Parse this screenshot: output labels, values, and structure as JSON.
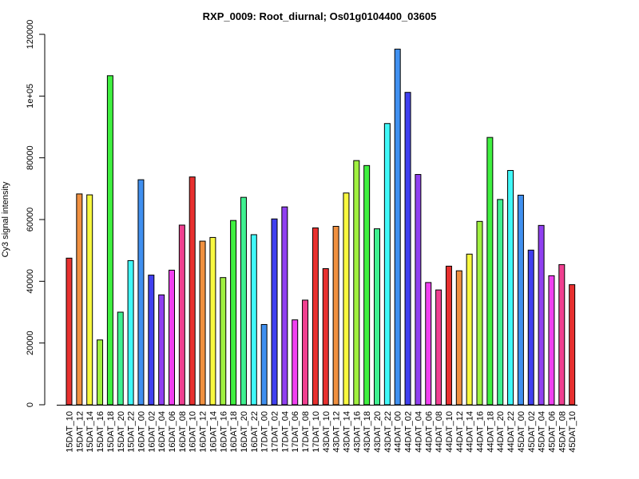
{
  "chart_data": {
    "type": "bar",
    "title": "RXP_0009: Root_diurnal; Os01g0104400_03605",
    "xlabel": "",
    "ylabel": "Cy3 signal intensity",
    "ylim": [
      0,
      120000
    ],
    "yticks": [
      0,
      20000,
      40000,
      60000,
      80000,
      "1e+05",
      120000
    ],
    "grid": false,
    "legend": "none",
    "categories": [
      "15DAT_10",
      "15DAT_12",
      "15DAT_14",
      "15DAT_16",
      "15DAT_18",
      "15DAT_20",
      "15DAT_22",
      "16DAT_00",
      "16DAT_02",
      "16DAT_04",
      "16DAT_06",
      "16DAT_08",
      "16DAT_10",
      "16DAT_12",
      "16DAT_14",
      "16DAT_16",
      "16DAT_18",
      "16DAT_20",
      "16DAT_22",
      "17DAT_00",
      "17DAT_02",
      "17DAT_04",
      "17DAT_06",
      "17DAT_08",
      "17DAT_10",
      "43DAT_10",
      "43DAT_12",
      "43DAT_14",
      "43DAT_16",
      "43DAT_18",
      "43DAT_20",
      "43DAT_22",
      "44DAT_00",
      "44DAT_02",
      "44DAT_04",
      "44DAT_06",
      "44DAT_08",
      "44DAT_10",
      "44DAT_12",
      "44DAT_14",
      "44DAT_16",
      "44DAT_18",
      "44DAT_20",
      "44DAT_22",
      "45DAT_00",
      "45DAT_02",
      "45DAT_04",
      "45DAT_06",
      "45DAT_08",
      "45DAT_10"
    ],
    "values": [
      47500,
      68300,
      68000,
      21000,
      106600,
      30000,
      46700,
      72900,
      42000,
      35600,
      43600,
      58200,
      73800,
      53000,
      54200,
      41200,
      59700,
      67200,
      55100,
      26000,
      60200,
      64100,
      27500,
      33900,
      57300,
      44100,
      57800,
      68600,
      79100,
      77500,
      57000,
      91100,
      115200,
      101200,
      74600,
      39600,
      37200,
      44900,
      43400,
      48800,
      59400,
      86600,
      66500,
      75900,
      67900,
      50100,
      58100,
      41800,
      45400,
      38900
    ],
    "colors": [
      "#e8302f",
      "#f09040",
      "#f8f840",
      "#a0f040",
      "#40f040",
      "#40f090",
      "#40f8f8",
      "#4090f0",
      "#4040f0",
      "#9040f0",
      "#f040f0",
      "#f04090",
      "#e8302f",
      "#f09040",
      "#f8f840",
      "#a0f040",
      "#40f040",
      "#40f090",
      "#40f8f8",
      "#4090f0",
      "#4040f0",
      "#9040f0",
      "#f040f0",
      "#f04090",
      "#e8302f",
      "#e8302f",
      "#f09040",
      "#f8f840",
      "#a0f040",
      "#40f040",
      "#40f090",
      "#40f8f8",
      "#4090f0",
      "#4040f0",
      "#9040f0",
      "#f040f0",
      "#f04090",
      "#e8302f",
      "#f09040",
      "#f8f840",
      "#a0f040",
      "#40f040",
      "#40f090",
      "#40f8f8",
      "#4090f0",
      "#4040f0",
      "#9040f0",
      "#f040f0",
      "#f04090",
      "#e8302f"
    ]
  }
}
